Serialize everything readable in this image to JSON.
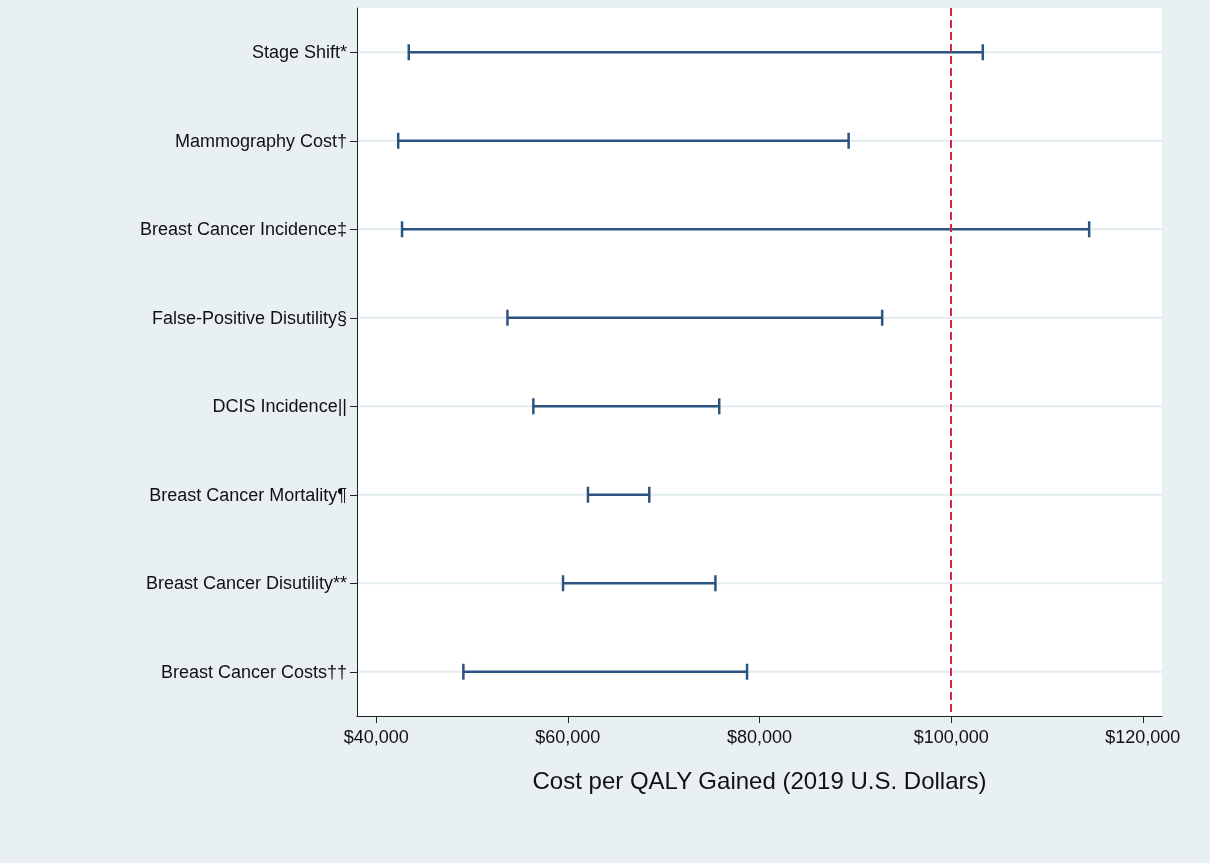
{
  "chart_data": {
    "type": "bar",
    "orientation": "horizontal",
    "xlabel": "Cost per QALY Gained (2019 U.S. Dollars)",
    "categories": [
      "Stage Shift*",
      "Mammography Cost†",
      "Breast Cancer Incidence‡",
      "False-Positive Disutility§",
      "DCIS Incidence||",
      "Breast Cancer Mortality¶",
      "Breast Cancer Disutility**",
      "Breast Cancer Costs††"
    ],
    "base": [
      43400,
      42300,
      42700,
      53700,
      56400,
      62100,
      59500,
      49100
    ],
    "values": [
      59900,
      47000,
      71700,
      39100,
      19400,
      6400,
      15900,
      29600
    ],
    "color": "#2b5480",
    "xlim": [
      38000,
      122000
    ],
    "xticks": [
      {
        "value": 40000,
        "label": "$40,000"
      },
      {
        "value": 60000,
        "label": "$60,000"
      },
      {
        "value": 80000,
        "label": "$80,000"
      },
      {
        "value": 100000,
        "label": "$100,000"
      },
      {
        "value": 120000,
        "label": "$120,000"
      }
    ],
    "grid": "y",
    "ref_lines": [
      {
        "axis": "x",
        "value": 100000,
        "color": "#d42a3c",
        "line_style": "dashed"
      }
    ]
  }
}
